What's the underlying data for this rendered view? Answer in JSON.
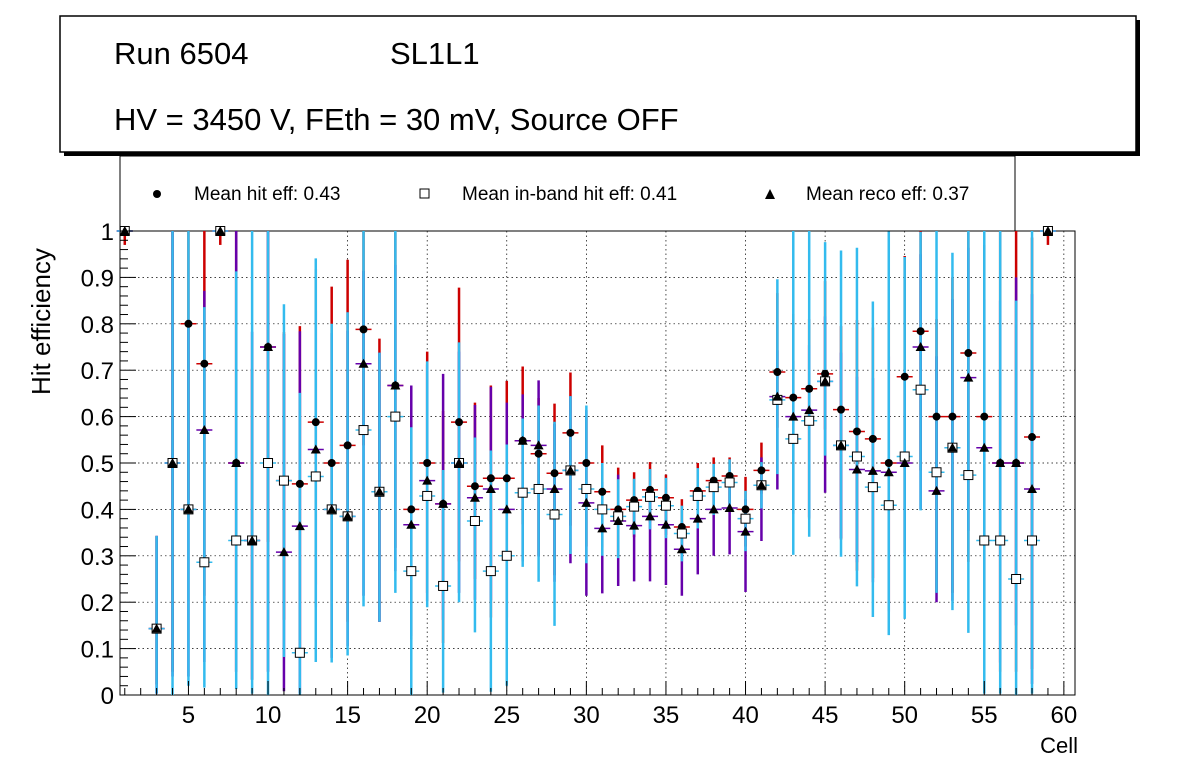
{
  "header": {
    "run_label": "Run 6504",
    "layer_label": "SL1L1",
    "conditions": "HV = 3450 V, FEth = 30 mV, Source OFF"
  },
  "legend": {
    "hit": "Mean hit  eff: 0.43",
    "inband": "Mean in-band hit eff: 0.41",
    "reco": "Mean reco eff: 0.37"
  },
  "colors": {
    "hit_error": "#cc0000",
    "inband_error": "#33bbee",
    "reco_error": "#6600aa",
    "marker": "#000000"
  },
  "chart_data": {
    "type": "scatter",
    "xlabel": "Cell",
    "ylabel": "Hit efficiency",
    "xlim": [
      0.7,
      60.7
    ],
    "ylim": [
      0,
      1
    ],
    "grid": true,
    "xticks": [
      5,
      10,
      15,
      20,
      25,
      30,
      35,
      40,
      45,
      50,
      55,
      60
    ],
    "xtick_labels": [
      "5",
      "10",
      "15",
      "20",
      "25",
      "30",
      "35",
      "40",
      "45",
      "50",
      "55",
      "60"
    ],
    "yticks": [
      0,
      0.1,
      0.2,
      0.3,
      0.4,
      0.5,
      0.6,
      0.7,
      0.8,
      0.9,
      1
    ],
    "ytick_labels": [
      "0",
      "0.1",
      "0.2",
      "0.3",
      "0.4",
      "0.5",
      "0.6",
      "0.7",
      "0.8",
      "0.9",
      "1"
    ],
    "series": [
      {
        "name": "hit",
        "marker": "circle",
        "cells": [
          1,
          3,
          4,
          5,
          6,
          7,
          8,
          9,
          10,
          11,
          12,
          13,
          14,
          15,
          16,
          17,
          18,
          19,
          20,
          21,
          22,
          23,
          24,
          25,
          26,
          27,
          28,
          29,
          30,
          31,
          32,
          33,
          34,
          35,
          36,
          37,
          38,
          39,
          40,
          41,
          42,
          43,
          44,
          45,
          46,
          47,
          48,
          49,
          50,
          51,
          52,
          53,
          54,
          55,
          56,
          57,
          58,
          59
        ],
        "values": [
          1.0,
          0.143,
          0.5,
          0.8,
          0.714,
          1.0,
          0.5,
          0.333,
          0.75,
          0.462,
          0.455,
          0.588,
          0.5,
          0.538,
          0.788,
          0.438,
          0.667,
          0.4,
          0.5,
          0.412,
          0.588,
          0.45,
          0.467,
          0.467,
          0.548,
          0.52,
          0.478,
          0.565,
          0.5,
          0.438,
          0.4,
          0.42,
          0.442,
          0.425,
          0.362,
          0.44,
          0.462,
          0.472,
          0.4,
          0.484,
          0.696,
          0.641,
          0.66,
          0.692,
          0.615,
          0.568,
          0.552,
          0.5,
          0.686,
          0.784,
          0.6,
          0.6,
          0.737,
          0.6,
          0.5,
          0.5,
          0.556,
          1.0
        ],
        "err_low": [
          0.03,
          0.12,
          0.45,
          0.38,
          0.5,
          0.03,
          0.45,
          0.3,
          0.42,
          0.3,
          0.36,
          0.35,
          0.42,
          0.38,
          0.25,
          0.28,
          0.35,
          0.28,
          0.28,
          0.3,
          0.3,
          0.2,
          0.3,
          0.3,
          0.18,
          0.22,
          0.22,
          0.2,
          0.18,
          0.12,
          0.1,
          0.08,
          0.07,
          0.08,
          0.06,
          0.08,
          0.07,
          0.06,
          0.08,
          0.05,
          0.12,
          0.25,
          0.28,
          0.12,
          0.28,
          0.3,
          0.3,
          0.3,
          0.38,
          0.3,
          0.38,
          0.38,
          0.45,
          0.4,
          0.45,
          0.45,
          0.5,
          0.03
        ],
        "err_high": [
          0.0,
          0.2,
          0.5,
          0.2,
          0.286,
          0.0,
          0.5,
          0.37,
          0.25,
          0.32,
          0.34,
          0.33,
          0.38,
          0.4,
          0.21,
          0.33,
          0.33,
          0.19,
          0.24,
          0.2,
          0.29,
          0.18,
          0.2,
          0.21,
          0.16,
          0.12,
          0.15,
          0.13,
          0.1,
          0.1,
          0.09,
          0.06,
          0.06,
          0.05,
          0.06,
          0.06,
          0.05,
          0.04,
          0.07,
          0.06,
          0.17,
          0.18,
          0.15,
          0.2,
          0.18,
          0.24,
          0.24,
          0.33,
          0.26,
          0.22,
          0.21,
          0.3,
          0.26,
          0.37,
          0.5,
          0.5,
          0.43,
          0.0
        ]
      },
      {
        "name": "inband",
        "marker": "square",
        "cells": [
          1,
          3,
          4,
          5,
          6,
          7,
          8,
          9,
          10,
          11,
          12,
          13,
          14,
          15,
          16,
          17,
          18,
          19,
          20,
          21,
          22,
          23,
          24,
          25,
          26,
          27,
          28,
          29,
          30,
          31,
          32,
          33,
          34,
          35,
          36,
          37,
          38,
          39,
          40,
          41,
          42,
          43,
          44,
          45,
          46,
          47,
          48,
          49,
          50,
          51,
          52,
          53,
          54,
          55,
          56,
          57,
          58,
          59
        ],
        "values": [
          1.0,
          0.143,
          0.5,
          0.4,
          0.286,
          1.0,
          0.333,
          0.333,
          0.5,
          0.462,
          0.091,
          0.471,
          0.4,
          0.385,
          0.571,
          0.438,
          0.6,
          0.267,
          0.429,
          0.235,
          0.5,
          0.375,
          0.267,
          0.3,
          0.436,
          0.444,
          0.389,
          0.484,
          0.444,
          0.4,
          0.385,
          0.406,
          0.427,
          0.408,
          0.348,
          0.429,
          0.448,
          0.458,
          0.38,
          0.452,
          0.636,
          0.552,
          0.591,
          0.676,
          0.538,
          0.514,
          0.448,
          0.409,
          0.514,
          0.658,
          0.48,
          0.533,
          0.474,
          0.333,
          0.333,
          0.25,
          0.333,
          1.0
        ],
        "err_low": [
          0.0,
          0.14,
          0.5,
          0.38,
          0.27,
          0.0,
          0.32,
          0.33,
          0.5,
          0.38,
          0.09,
          0.4,
          0.33,
          0.3,
          0.38,
          0.28,
          0.38,
          0.27,
          0.24,
          0.23,
          0.3,
          0.24,
          0.26,
          0.28,
          0.16,
          0.2,
          0.24,
          0.18,
          0.16,
          0.1,
          0.09,
          0.06,
          0.07,
          0.07,
          0.06,
          0.07,
          0.06,
          0.06,
          0.07,
          0.05,
          0.16,
          0.25,
          0.25,
          0.16,
          0.24,
          0.28,
          0.28,
          0.28,
          0.35,
          0.26,
          0.26,
          0.35,
          0.34,
          0.33,
          0.33,
          0.25,
          0.33,
          0.0
        ],
        "err_high": [
          0.0,
          0.2,
          0.5,
          0.6,
          0.55,
          0.0,
          0.58,
          0.67,
          0.5,
          0.38,
          0.56,
          0.47,
          0.4,
          0.44,
          0.43,
          0.3,
          0.4,
          0.31,
          0.29,
          0.25,
          0.26,
          0.18,
          0.26,
          0.24,
          0.16,
          0.18,
          0.2,
          0.16,
          0.18,
          0.1,
          0.08,
          0.06,
          0.06,
          0.06,
          0.06,
          0.06,
          0.05,
          0.05,
          0.06,
          0.05,
          0.26,
          0.45,
          0.41,
          0.3,
          0.42,
          0.45,
          0.4,
          0.59,
          0.43,
          0.34,
          0.52,
          0.42,
          0.53,
          0.67,
          0.67,
          0.6,
          0.67,
          0.0
        ]
      },
      {
        "name": "reco",
        "marker": "triangle",
        "cells": [
          1,
          3,
          4,
          5,
          6,
          7,
          8,
          9,
          10,
          11,
          12,
          13,
          14,
          15,
          16,
          17,
          18,
          19,
          20,
          21,
          22,
          23,
          24,
          25,
          26,
          27,
          28,
          29,
          30,
          31,
          32,
          33,
          34,
          35,
          36,
          37,
          38,
          39,
          40,
          41,
          42,
          43,
          44,
          45,
          46,
          47,
          48,
          49,
          50,
          51,
          52,
          53,
          54,
          55,
          56,
          57,
          58,
          59
        ],
        "values": [
          1.0,
          0.143,
          0.5,
          0.4,
          0.571,
          1.0,
          0.5,
          0.333,
          0.75,
          0.308,
          0.364,
          0.529,
          0.4,
          0.385,
          0.714,
          0.438,
          0.667,
          0.367,
          0.462,
          0.412,
          0.5,
          0.425,
          0.444,
          0.4,
          0.548,
          0.538,
          0.444,
          0.484,
          0.414,
          0.359,
          0.375,
          0.365,
          0.385,
          0.367,
          0.314,
          0.38,
          0.4,
          0.403,
          0.352,
          0.452,
          0.643,
          0.6,
          0.614,
          0.676,
          0.538,
          0.486,
          0.483,
          0.48,
          0.5,
          0.75,
          0.44,
          0.533,
          0.684,
          0.533,
          0.5,
          0.5,
          0.444,
          1.0
        ],
        "err_low": [
          0.0,
          0.14,
          0.46,
          0.36,
          0.5,
          0.0,
          0.45,
          0.3,
          0.7,
          0.3,
          0.36,
          0.34,
          0.32,
          0.28,
          0.5,
          0.28,
          0.4,
          0.24,
          0.26,
          0.25,
          0.28,
          0.22,
          0.24,
          0.26,
          0.26,
          0.24,
          0.2,
          0.2,
          0.2,
          0.14,
          0.14,
          0.12,
          0.14,
          0.13,
          0.1,
          0.12,
          0.1,
          0.1,
          0.13,
          0.12,
          0.2,
          0.21,
          0.23,
          0.24,
          0.2,
          0.2,
          0.24,
          0.3,
          0.2,
          0.35,
          0.24,
          0.33,
          0.33,
          0.33,
          0.43,
          0.35,
          0.42,
          0.0
        ],
        "err_high": [
          0.0,
          0.2,
          0.5,
          0.4,
          0.3,
          0.0,
          0.5,
          0.45,
          0.25,
          0.47,
          0.42,
          0.3,
          0.38,
          0.4,
          0.2,
          0.3,
          0.26,
          0.3,
          0.25,
          0.28,
          0.24,
          0.2,
          0.22,
          0.23,
          0.1,
          0.14,
          0.14,
          0.16,
          0.2,
          0.1,
          0.1,
          0.06,
          0.06,
          0.06,
          0.06,
          0.06,
          0.06,
          0.06,
          0.07,
          0.06,
          0.1,
          0.12,
          0.14,
          0.14,
          0.2,
          0.2,
          0.2,
          0.25,
          0.18,
          0.2,
          0.29,
          0.32,
          0.28,
          0.32,
          0.35,
          0.4,
          0.42,
          0.0
        ]
      }
    ]
  }
}
